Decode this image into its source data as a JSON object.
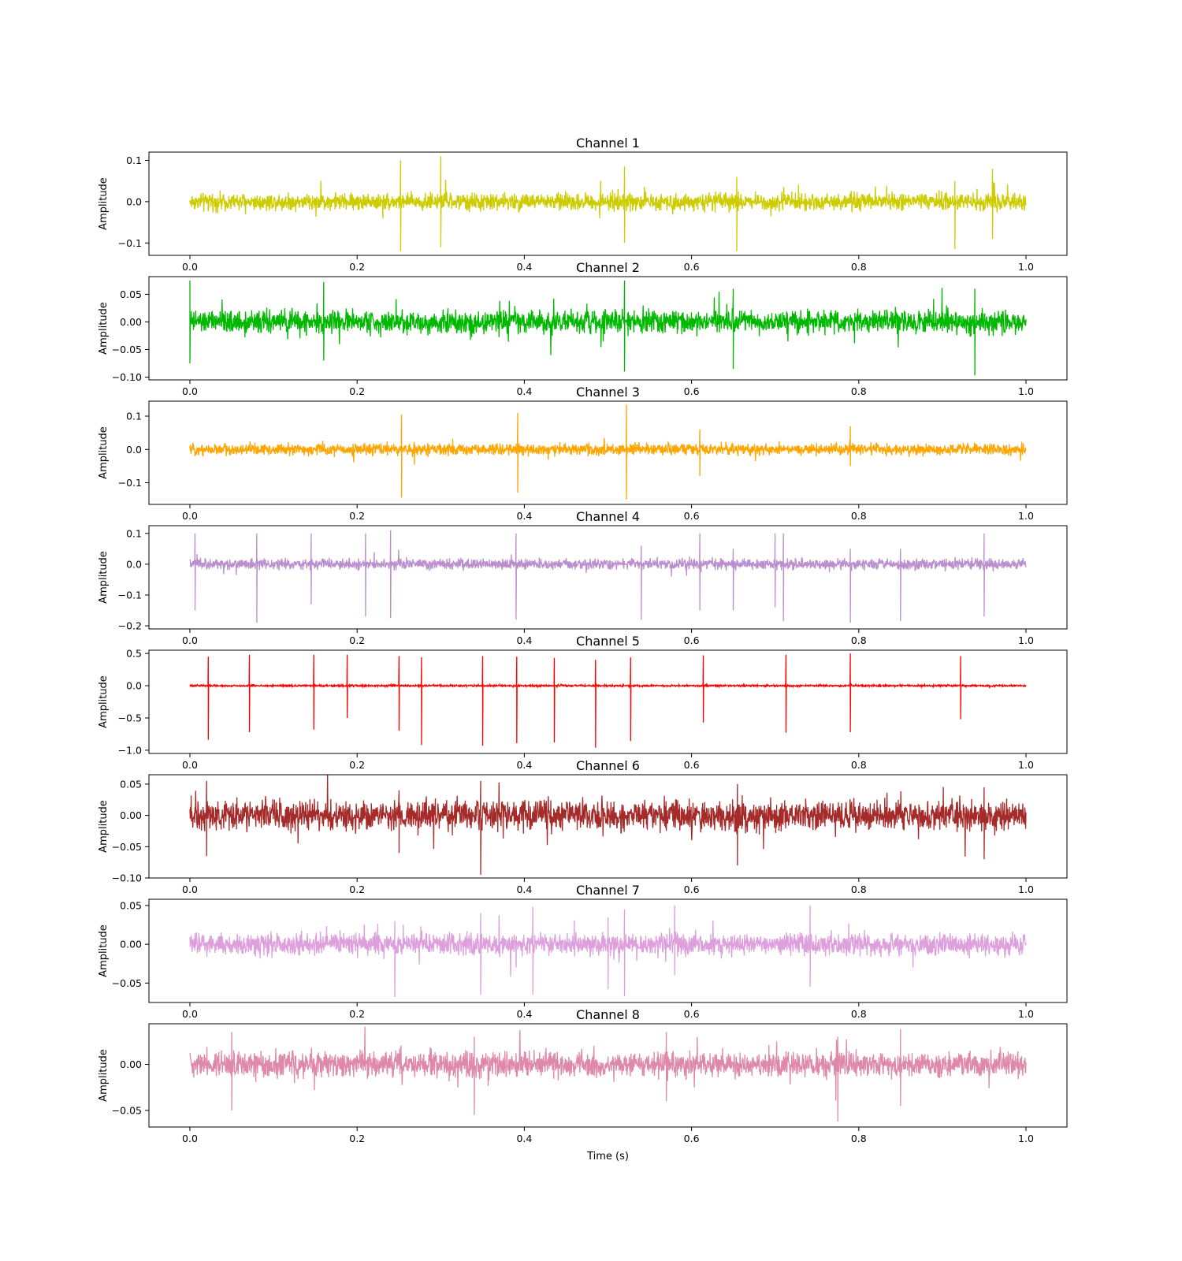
{
  "chart_data": [
    {
      "type": "line",
      "title": "Channel 1",
      "ylabel": "Amplitude",
      "xlabel": "",
      "color": "#cccc00",
      "xlim": [
        0.0,
        1.0
      ],
      "ylim": [
        -0.13,
        0.12
      ],
      "xticks": [
        "0.0",
        "0.2",
        "0.4",
        "0.6",
        "0.8",
        "1.0"
      ],
      "yticks": [
        0.1,
        0.0,
        -0.1
      ],
      "ytick_labels": [
        "0.1",
        "0.0",
        "−0.1"
      ],
      "noise_level": [
        -0.03,
        0.03
      ],
      "spikes": [
        {
          "x": 0.252,
          "min": -0.12,
          "max": 0.1
        },
        {
          "x": 0.3,
          "min": -0.11,
          "max": 0.11
        },
        {
          "x": 0.654,
          "min": -0.12,
          "max": 0.06
        },
        {
          "x": 0.915,
          "min": -0.115,
          "max": 0.05
        },
        {
          "x": 0.96,
          "min": -0.09,
          "max": 0.08
        },
        {
          "x": 0.52,
          "min": -0.1,
          "max": 0.085
        }
      ]
    },
    {
      "type": "line",
      "title": "Channel 2",
      "ylabel": "Amplitude",
      "xlabel": "",
      "color": "#00b800",
      "xlim": [
        0.0,
        1.0
      ],
      "ylim": [
        -0.105,
        0.082
      ],
      "xticks": [
        "0.0",
        "0.2",
        "0.4",
        "0.6",
        "0.8",
        "1.0"
      ],
      "yticks": [
        0.05,
        0.0,
        -0.05,
        -0.1
      ],
      "ytick_labels": [
        "0.05",
        "0.00",
        "−0.05",
        "−0.10"
      ],
      "noise_level": [
        -0.03,
        0.03
      ],
      "spikes": [
        {
          "x": 0.0,
          "min": -0.075,
          "max": 0.075
        },
        {
          "x": 0.52,
          "min": -0.09,
          "max": 0.075
        },
        {
          "x": 0.939,
          "min": -0.097,
          "max": 0.06
        },
        {
          "x": 0.65,
          "min": -0.085,
          "max": 0.06
        },
        {
          "x": 0.16,
          "min": -0.07,
          "max": 0.072
        }
      ]
    },
    {
      "type": "line",
      "title": "Channel 3",
      "ylabel": "Amplitude",
      "xlabel": "",
      "color": "#ffa500",
      "xlim": [
        0.0,
        1.0
      ],
      "ylim": [
        -0.165,
        0.145
      ],
      "xticks": [
        "0.0",
        "0.2",
        "0.4",
        "0.6",
        "0.8",
        "1.0"
      ],
      "yticks": [
        0.1,
        0.0,
        -0.1
      ],
      "ytick_labels": [
        "0.1",
        "0.0",
        "−0.1"
      ],
      "noise_level": [
        -0.025,
        0.025
      ],
      "spikes": [
        {
          "x": 0.253,
          "min": -0.145,
          "max": 0.105
        },
        {
          "x": 0.392,
          "min": -0.13,
          "max": 0.11
        },
        {
          "x": 0.522,
          "min": -0.15,
          "max": 0.135
        },
        {
          "x": 0.61,
          "min": -0.08,
          "max": 0.06
        },
        {
          "x": 0.79,
          "min": -0.05,
          "max": 0.07
        }
      ]
    },
    {
      "type": "line",
      "title": "Channel 4",
      "ylabel": "Amplitude",
      "xlabel": "",
      "color": "#bb8fce",
      "xlim": [
        0.0,
        1.0
      ],
      "ylim": [
        -0.21,
        0.125
      ],
      "xticks": [
        "0.0",
        "0.2",
        "0.4",
        "0.6",
        "0.8",
        "1.0"
      ],
      "yticks": [
        0.1,
        0.0,
        -0.1,
        -0.2
      ],
      "ytick_labels": [
        "0.1",
        "0.0",
        "−0.1",
        "−0.2"
      ],
      "noise_level": [
        -0.025,
        0.025
      ],
      "spikes": [
        {
          "x": 0.006,
          "min": -0.15,
          "max": 0.1
        },
        {
          "x": 0.08,
          "min": -0.19,
          "max": 0.1
        },
        {
          "x": 0.21,
          "min": -0.17,
          "max": 0.1
        },
        {
          "x": 0.39,
          "min": -0.18,
          "max": 0.1
        },
        {
          "x": 0.71,
          "min": -0.185,
          "max": 0.1
        },
        {
          "x": 0.79,
          "min": -0.19,
          "max": 0.05
        },
        {
          "x": 0.85,
          "min": -0.185,
          "max": 0.05
        },
        {
          "x": 0.95,
          "min": -0.17,
          "max": 0.1
        },
        {
          "x": 0.145,
          "min": -0.13,
          "max": 0.1
        },
        {
          "x": 0.24,
          "min": -0.175,
          "max": 0.11
        },
        {
          "x": 0.54,
          "min": -0.18,
          "max": 0.06
        },
        {
          "x": 0.61,
          "min": -0.15,
          "max": 0.1
        },
        {
          "x": 0.65,
          "min": -0.15,
          "max": 0.05
        },
        {
          "x": 0.7,
          "min": -0.14,
          "max": 0.1
        }
      ]
    },
    {
      "type": "line",
      "title": "Channel 5",
      "ylabel": "Amplitude",
      "xlabel": "",
      "color": "#ff0000",
      "xlim": [
        0.0,
        1.0
      ],
      "ylim": [
        -1.05,
        0.55
      ],
      "xticks": [
        "0.0",
        "0.2",
        "0.4",
        "0.6",
        "0.8",
        "1.0"
      ],
      "yticks": [
        0.5,
        0.0,
        -0.5,
        -1.0
      ],
      "ytick_labels": [
        "0.5",
        "0.0",
        "−0.5",
        "−1.0"
      ],
      "noise_level": [
        -0.02,
        0.02
      ],
      "spikes": [
        {
          "x": 0.022,
          "min": -0.84,
          "max": 0.45
        },
        {
          "x": 0.071,
          "min": -0.72,
          "max": 0.48
        },
        {
          "x": 0.148,
          "min": -0.68,
          "max": 0.48
        },
        {
          "x": 0.188,
          "min": -0.5,
          "max": 0.48
        },
        {
          "x": 0.25,
          "min": -0.7,
          "max": 0.46
        },
        {
          "x": 0.277,
          "min": -0.92,
          "max": 0.44
        },
        {
          "x": 0.35,
          "min": -0.93,
          "max": 0.46
        },
        {
          "x": 0.391,
          "min": -0.89,
          "max": 0.45
        },
        {
          "x": 0.436,
          "min": -0.88,
          "max": 0.43
        },
        {
          "x": 0.485,
          "min": -0.96,
          "max": 0.4
        },
        {
          "x": 0.527,
          "min": -0.86,
          "max": 0.44
        },
        {
          "x": 0.614,
          "min": -0.57,
          "max": 0.47
        },
        {
          "x": 0.713,
          "min": -0.73,
          "max": 0.48
        },
        {
          "x": 0.79,
          "min": -0.72,
          "max": 0.5
        },
        {
          "x": 0.922,
          "min": -0.52,
          "max": 0.46
        }
      ]
    },
    {
      "type": "line",
      "title": "Channel 6",
      "ylabel": "Amplitude",
      "xlabel": "",
      "color": "#a52a2a",
      "xlim": [
        0.0,
        1.0
      ],
      "ylim": [
        -0.1,
        0.065
      ],
      "xticks": [
        "0.0",
        "0.2",
        "0.4",
        "0.6",
        "0.8",
        "1.0"
      ],
      "yticks": [
        0.05,
        0.0,
        -0.05,
        -0.1
      ],
      "ytick_labels": [
        "0.05",
        "0.00",
        "−0.05",
        "−0.10"
      ],
      "noise_level": [
        -0.035,
        0.035
      ],
      "spikes": [
        {
          "x": 0.348,
          "min": -0.095,
          "max": 0.055
        },
        {
          "x": 0.655,
          "min": -0.08,
          "max": 0.05
        },
        {
          "x": 0.95,
          "min": -0.07,
          "max": 0.045
        },
        {
          "x": 0.02,
          "min": -0.065,
          "max": 0.055
        },
        {
          "x": 0.25,
          "min": -0.06,
          "max": 0.04
        }
      ]
    },
    {
      "type": "line",
      "title": "Channel 7",
      "ylabel": "Amplitude",
      "xlabel": "",
      "color": "#dda0dd",
      "xlim": [
        0.0,
        1.0
      ],
      "ylim": [
        -0.075,
        0.058
      ],
      "xticks": [
        "0.0",
        "0.2",
        "0.4",
        "0.6",
        "0.8",
        "1.0"
      ],
      "yticks": [
        0.05,
        0.0,
        -0.05
      ],
      "ytick_labels": [
        "0.05",
        "0.00",
        "−0.05"
      ],
      "noise_level": [
        -0.02,
        0.02
      ],
      "spikes": [
        {
          "x": 0.245,
          "min": -0.068,
          "max": 0.03
        },
        {
          "x": 0.348,
          "min": -0.065,
          "max": 0.04
        },
        {
          "x": 0.41,
          "min": -0.065,
          "max": 0.048
        },
        {
          "x": 0.52,
          "min": -0.067,
          "max": 0.045
        },
        {
          "x": 0.58,
          "min": -0.04,
          "max": 0.05
        },
        {
          "x": 0.742,
          "min": -0.055,
          "max": 0.05
        },
        {
          "x": 0.5,
          "min": -0.058,
          "max": 0.035
        }
      ]
    },
    {
      "type": "line",
      "title": "Channel 8",
      "ylabel": "Amplitude",
      "xlabel": "Time (s)",
      "color": "#de89a8",
      "xlim": [
        0.0,
        1.0
      ],
      "ylim": [
        -0.068,
        0.044
      ],
      "xticks": [
        "0.0",
        "0.2",
        "0.4",
        "0.6",
        "0.8",
        "1.0"
      ],
      "yticks": [
        0.0,
        -0.05
      ],
      "ytick_labels": [
        "0.00",
        "−0.05"
      ],
      "noise_level": [
        -0.02,
        0.02
      ],
      "spikes": [
        {
          "x": 0.775,
          "min": -0.062,
          "max": 0.03
        },
        {
          "x": 0.34,
          "min": -0.055,
          "max": 0.03
        },
        {
          "x": 0.05,
          "min": -0.05,
          "max": 0.035
        },
        {
          "x": 0.85,
          "min": -0.045,
          "max": 0.038
        },
        {
          "x": 0.57,
          "min": -0.04,
          "max": 0.035
        }
      ]
    }
  ]
}
